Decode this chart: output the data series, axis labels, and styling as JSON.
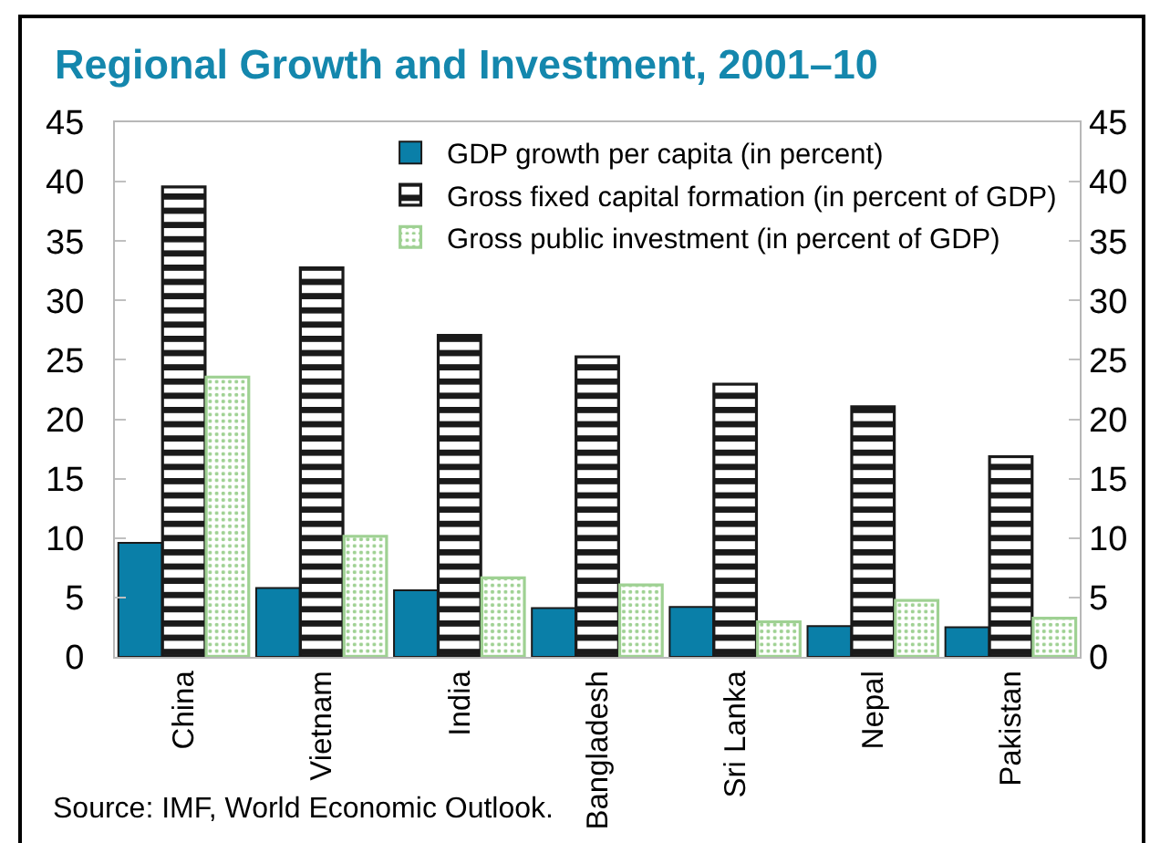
{
  "chart_data": {
    "type": "bar",
    "title": "Regional Growth and Investment, 2001–10",
    "categories": [
      "China",
      "Vietnam",
      "India",
      "Bangladesh",
      "Sri Lanka",
      "Nepal",
      "Pakistan"
    ],
    "series": [
      {
        "name": "GDP growth per capita (in percent)",
        "color": "#0a7fa8",
        "values": [
          9.6,
          5.8,
          5.6,
          4.1,
          4.2,
          2.6,
          2.5
        ]
      },
      {
        "name": "Gross fixed capital formation (in percent of GDP)",
        "color": "#1a1a1a",
        "values": [
          39.6,
          32.8,
          27.1,
          25.3,
          23.0,
          21.1,
          16.9
        ]
      },
      {
        "name": "Gross public investment (in percent of GDP)",
        "color": "#9fd193",
        "values": [
          23.6,
          10.2,
          6.7,
          6.1,
          3.0,
          4.8,
          3.3
        ]
      }
    ],
    "ylim": [
      0,
      45
    ],
    "yticks": [
      0,
      5,
      10,
      15,
      20,
      25,
      30,
      35,
      40,
      45
    ],
    "y2lim": [
      0,
      45
    ],
    "y2ticks": [
      0,
      5,
      10,
      15,
      20,
      25,
      30,
      35,
      40,
      45
    ],
    "grid": false,
    "legend": "top right",
    "annotations": [
      "Source: IMF, World Economic Outlook."
    ]
  }
}
